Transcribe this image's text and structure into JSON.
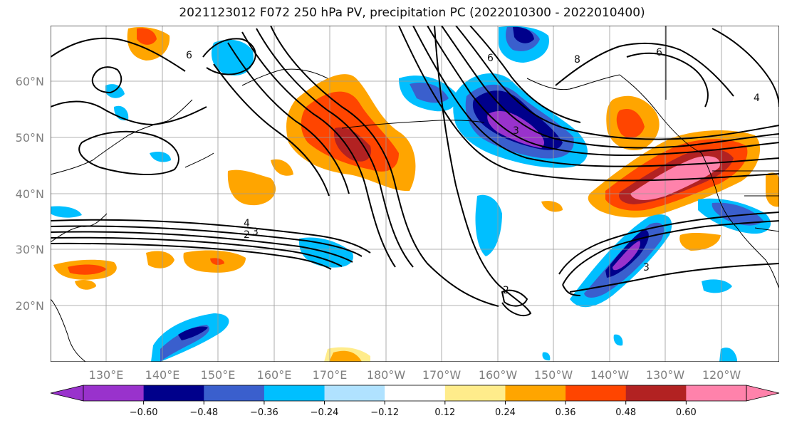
{
  "title": "2021123012 F072 250 hPa PV, precipitation PC (2022010300 - 2022010400)",
  "lat_labels": [
    "60°N",
    "50°N",
    "40°N",
    "30°N",
    "20°N"
  ],
  "lon_labels": [
    "130°E",
    "140°E",
    "150°E",
    "160°E",
    "170°E",
    "180°W",
    "170°W",
    "160°W",
    "150°W",
    "140°W",
    "130°W",
    "120°W"
  ],
  "colorbar": {
    "colors": [
      "#9932CC",
      "#00008B",
      "#3A5FCD",
      "#00BFFF",
      "#B0E2FF",
      "#FFFFFF",
      "#FFEC8B",
      "#FFA500",
      "#FF4500",
      "#B22222",
      "#FF82AB"
    ],
    "tick_labels": [
      "-0.60",
      "-0.48",
      "-0.36",
      "-0.24",
      "-0.12",
      "0.12",
      "0.24",
      "0.36",
      "0.48",
      "0.60"
    ]
  },
  "contour_labels": [
    "4",
    "3",
    "2",
    "3",
    "3",
    "2",
    "6",
    "6",
    "8",
    "6",
    "4"
  ]
}
